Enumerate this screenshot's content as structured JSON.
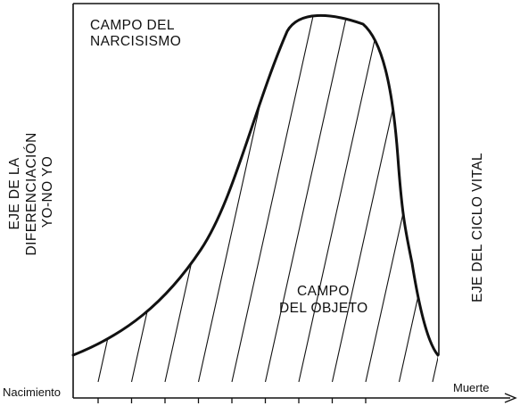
{
  "labels": {
    "narcissism_field": [
      "CAMPO DEL",
      "NARCISISMO"
    ],
    "object_field": [
      "CAMPO",
      "DEL OBJETO"
    ],
    "left_axis": [
      "EJE DE LA",
      "DIFERENCIACIÓN",
      "YO-NO YO"
    ],
    "right_axis": "EJE DEL CICLO VITAL",
    "start": "Nacimiento",
    "end": "Muerte"
  },
  "tick_count": 9
}
